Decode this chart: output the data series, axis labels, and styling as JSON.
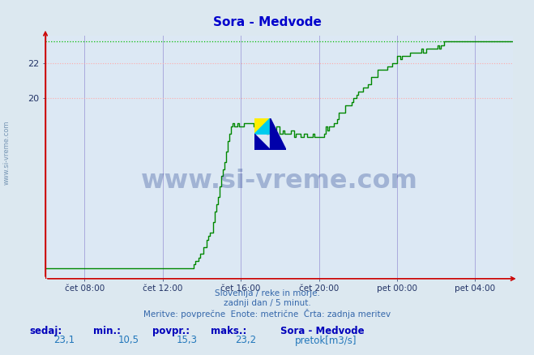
{
  "title": "Sora - Medvode",
  "title_color": "#0000cc",
  "bg_color": "#dce8f0",
  "plot_bg_color": "#dce8f4",
  "grid_color_h": "#ffaaaa",
  "grid_color_v": "#aaaadd",
  "line_color": "#008800",
  "dotted_max_color": "#00bb00",
  "axis_color": "#cc0000",
  "tick_color": "#223366",
  "ylabel_values": [
    20,
    22
  ],
  "ymin": 9.8,
  "ymax": 23.55,
  "x_tick_labels": [
    "čet 08:00",
    "čet 12:00",
    "čet 16:00",
    "čet 20:00",
    "pet 00:00",
    "pet 04:00"
  ],
  "x_tick_hours": [
    2,
    6,
    10,
    14,
    18,
    22
  ],
  "total_hours": 24,
  "points_per_hour": 12,
  "max_value": 23.2,
  "min_value": 10.5,
  "avg_value": 15.3,
  "current_value": 23.1,
  "station_name": "Sora - Medvode",
  "unit": "pretok[m3/s]",
  "legend_color": "#00bb00",
  "footer_line1": "Slovenija / reke in morje.",
  "footer_line2": "zadnji dan / 5 minut.",
  "footer_line3": "Meritve: povprečne  Enote: metrične  Črta: zadnja meritev",
  "footer_color": "#3366aa",
  "label_bold_color": "#0000bb",
  "label_value_color": "#2277bb",
  "watermark_text": "www.si-vreme.com",
  "watermark_color": "#1a3a8a",
  "side_text": "www.si-vreme.com",
  "side_color": "#6688aa"
}
